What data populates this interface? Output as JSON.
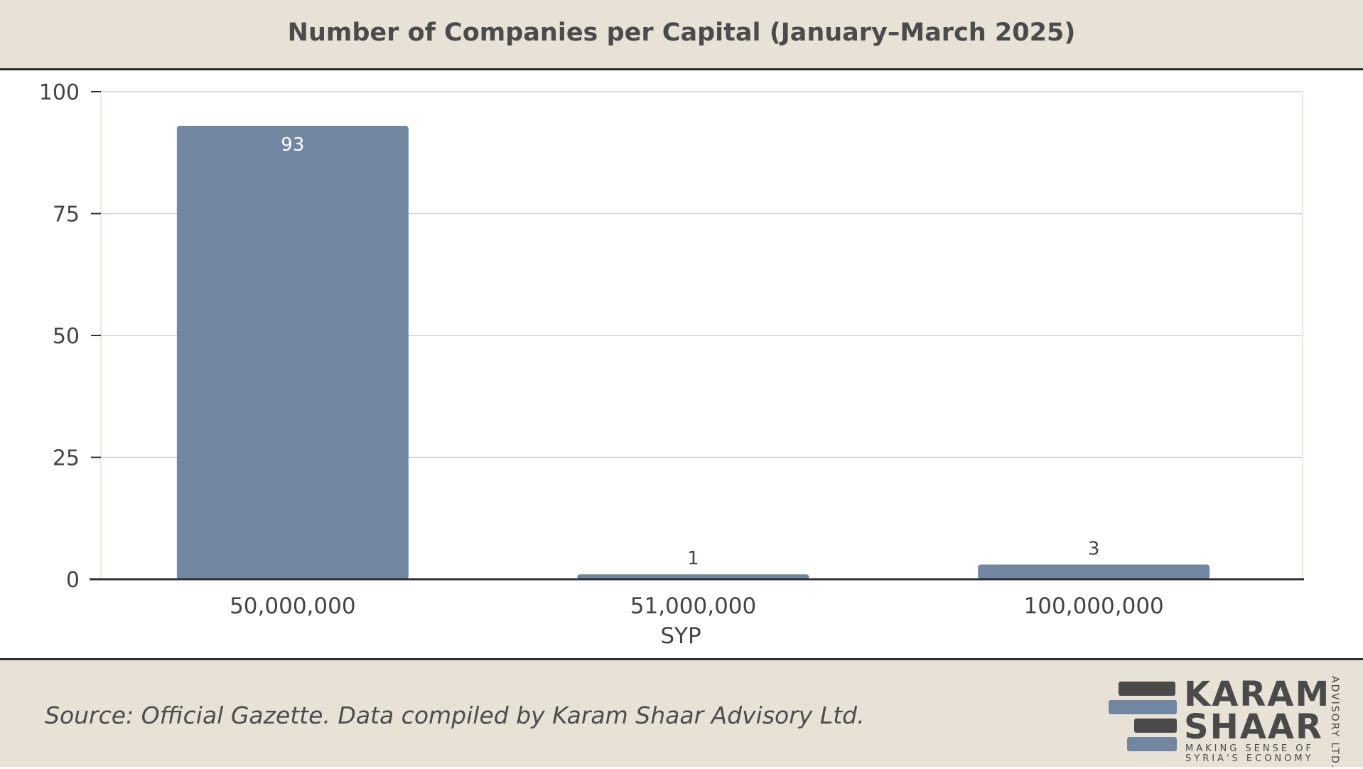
{
  "chart_data": {
    "type": "bar",
    "title": "Number of Companies per Capital (January–March 2025)",
    "xlabel": "SYP",
    "ylabel": "",
    "categories": [
      "50,000,000",
      "51,000,000",
      "100,000,000"
    ],
    "values": [
      93,
      1,
      3
    ],
    "ylim": [
      0,
      100
    ],
    "yticks": [
      0,
      25,
      50,
      75,
      100
    ],
    "grid": true,
    "bar_color": "#7186a0"
  },
  "footer": {
    "source": "Source: Official Gazette. Data compiled by Karam Shaar Advisory Ltd."
  },
  "logo": {
    "line1": "KARAM",
    "line2": "SHAAR",
    "tagline1": "MAKING SENSE OF",
    "tagline2": "SYRIA'S ECONOMY",
    "side": "ADVISORY LTD."
  },
  "colors": {
    "background_band": "#e8e1d5",
    "rule": "#2f2f2f",
    "text": "#4b4b4b",
    "accent_blue": "#7186a0",
    "accent_dark": "#4a4a4a"
  }
}
